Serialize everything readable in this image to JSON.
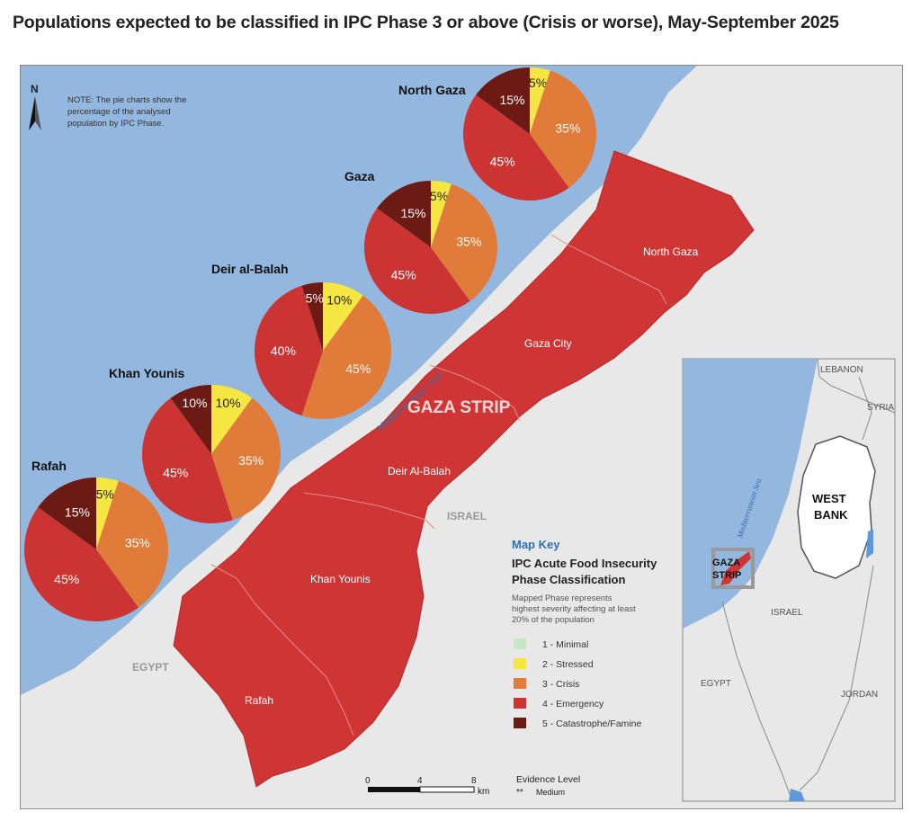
{
  "title": "Populations expected to be classified in IPC Phase 3 or above (Crisis or worse), May-September 2025",
  "note": [
    "NOTE: The pie charts show the",
    "percentage of the analysed",
    "population by IPC Phase."
  ],
  "north_arrow": "N",
  "colors": {
    "sea": "#93b7df",
    "land": "#e8e8e8",
    "minimal": "#c8e6c9",
    "stressed": "#f5e642",
    "crisis": "#e07b39",
    "emergency": "#cc3333",
    "famine": "#6b1a14",
    "gaza_fill": "#d03535"
  },
  "labels": {
    "sea": "Mediterranean Sea",
    "strip": "GAZA STRIP",
    "israel": "ISRAEL",
    "egypt": "EGYPT",
    "north_gaza": "North Gaza",
    "gaza_city": "Gaza City",
    "deir": "Deir Al-Balah",
    "khan": "Khan Younis",
    "rafah": "Rafah"
  },
  "chart_data": [
    {
      "type": "pie",
      "title": "North Gaza",
      "categories": [
        "2 - Stressed",
        "3 - Crisis",
        "4 - Emergency",
        "5 - Catastrophe/Famine"
      ],
      "values": [
        5,
        35,
        45,
        15
      ]
    },
    {
      "type": "pie",
      "title": "Gaza",
      "categories": [
        "2 - Stressed",
        "3 - Crisis",
        "4 - Emergency",
        "5 - Catastrophe/Famine"
      ],
      "values": [
        5,
        35,
        45,
        15
      ]
    },
    {
      "type": "pie",
      "title": "Deir al-Balah",
      "categories": [
        "2 - Stressed",
        "3 - Crisis",
        "4 - Emergency",
        "5 - Catastrophe/Famine"
      ],
      "values": [
        10,
        45,
        40,
        5
      ]
    },
    {
      "type": "pie",
      "title": "Khan Younis",
      "categories": [
        "2 - Stressed",
        "3 - Crisis",
        "4 - Emergency",
        "5 - Catastrophe/Famine"
      ],
      "values": [
        10,
        35,
        45,
        10
      ]
    },
    {
      "type": "pie",
      "title": "Rafah",
      "categories": [
        "2 - Stressed",
        "3 - Crisis",
        "4 - Emergency",
        "5 - Catastrophe/Famine"
      ],
      "values": [
        5,
        35,
        45,
        15
      ]
    }
  ],
  "legend": {
    "heading": "Map Key",
    "subtitle_line1": "IPC Acute Food Insecurity",
    "subtitle_line2": "Phase Classification",
    "desc": [
      "Mapped Phase represents",
      "highest severity affecting at least",
      "20% of the population"
    ],
    "items": [
      {
        "label": "1 - Minimal",
        "color": "#c8e6c9"
      },
      {
        "label": "2 - Stressed",
        "color": "#f5e642"
      },
      {
        "label": "3 - Crisis",
        "color": "#e07b39"
      },
      {
        "label": "4 - Emergency",
        "color": "#cc3333"
      },
      {
        "label": "5 - Catastrophe/Famine",
        "color": "#6b1a14"
      }
    ]
  },
  "scale": {
    "ticks": [
      "0",
      "4",
      "8"
    ],
    "unit": "km"
  },
  "evidence": {
    "heading": "Evidence Level",
    "stars": "**",
    "level": "Medium"
  },
  "inset": {
    "lebanon": "LEBANON",
    "syria": "SYRIA",
    "west_bank": [
      "WEST",
      "BANK"
    ],
    "gaza": [
      "GAZA",
      "STRIP"
    ],
    "israel": "ISRAEL",
    "egypt": "EGYPT",
    "jordan": "JORDAN",
    "sea": "Mediterranean Sea"
  }
}
